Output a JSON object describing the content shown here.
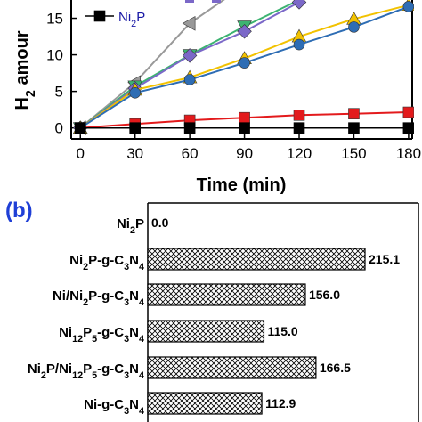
{
  "chart_data": [
    {
      "type": "line",
      "panel": "",
      "xlabel": "Time (min)",
      "ylabel": "H2 amount",
      "xlim": [
        -5,
        182
      ],
      "ylim": [
        -1.5,
        17.5
      ],
      "xticks": [
        0,
        30,
        60,
        90,
        120,
        150,
        180
      ],
      "yticks": [
        0,
        5,
        10,
        15
      ],
      "legend_position": "top-left",
      "series": [
        {
          "name": "",
          "color": "#999999",
          "marker": "triangle-left",
          "x": [
            0,
            30,
            60,
            90
          ],
          "y": [
            0,
            6.2,
            14.3,
            19.5
          ]
        },
        {
          "name": "",
          "color": "#3cb371",
          "marker": "triangle-down",
          "x": [
            0,
            30,
            60,
            90,
            120
          ],
          "y": [
            0,
            5.7,
            10.0,
            13.9,
            17.5
          ]
        },
        {
          "name": "",
          "color": "#7b68c8",
          "marker": "diamond",
          "x": [
            0,
            30,
            60,
            90,
            120
          ],
          "y": [
            0,
            5.4,
            9.9,
            13.2,
            17.2
          ]
        },
        {
          "name": "",
          "color": "#f2c200",
          "marker": "triangle-up",
          "x": [
            0,
            30,
            60,
            90,
            120,
            150,
            180
          ],
          "y": [
            0,
            5.2,
            6.9,
            9.5,
            12.5,
            14.9,
            16.8
          ]
        },
        {
          "name": "",
          "color": "#2e6db4",
          "marker": "circle",
          "x": [
            0,
            30,
            60,
            90,
            120,
            150,
            180
          ],
          "y": [
            0,
            4.8,
            6.6,
            8.9,
            11.4,
            13.8,
            16.6
          ]
        },
        {
          "name": "",
          "color": "#e31a1c",
          "marker": "square",
          "x": [
            0,
            30,
            60,
            90,
            120,
            150,
            180
          ],
          "y": [
            0,
            0.55,
            1.05,
            1.4,
            1.75,
            1.95,
            2.15
          ]
        },
        {
          "name": "Ni2P",
          "color": "#000000",
          "marker": "square",
          "x": [
            0,
            30,
            60,
            90,
            120,
            150,
            180
          ],
          "y": [
            0,
            0,
            0,
            0,
            0,
            0,
            0
          ]
        }
      ],
      "legend": [
        {
          "series": "Ni2P",
          "text": "Ni",
          "sub": "2",
          "after": "P"
        }
      ]
    },
    {
      "type": "bar",
      "orientation": "horizontal",
      "panel": "(b)",
      "xlim": [
        0,
        250
      ],
      "categories": [
        {
          "parts": [
            [
              "Ni",
              ""
            ],
            [
              "2",
              "sub"
            ],
            [
              "P",
              ""
            ]
          ]
        },
        {
          "parts": [
            [
              "Ni",
              ""
            ],
            [
              "2",
              "sub"
            ],
            [
              "P-g-C",
              ""
            ],
            [
              "3",
              "sub"
            ],
            [
              "N",
              ""
            ],
            [
              "4",
              "sub"
            ]
          ]
        },
        {
          "parts": [
            [
              "Ni/Ni",
              ""
            ],
            [
              "2",
              "sub"
            ],
            [
              "P-g-C",
              ""
            ],
            [
              "3",
              "sub"
            ],
            [
              "N",
              ""
            ],
            [
              "4",
              "sub"
            ]
          ]
        },
        {
          "parts": [
            [
              "Ni",
              ""
            ],
            [
              "12",
              "sub"
            ],
            [
              "P",
              ""
            ],
            [
              "5",
              "sub"
            ],
            [
              "-g-C",
              ""
            ],
            [
              "3",
              "sub"
            ],
            [
              "N",
              ""
            ],
            [
              "4",
              "sub"
            ]
          ]
        },
        {
          "parts": [
            [
              "Ni",
              ""
            ],
            [
              "2",
              "sub"
            ],
            [
              "P/Ni",
              ""
            ],
            [
              "12",
              "sub"
            ],
            [
              "P",
              ""
            ],
            [
              "5",
              "sub"
            ],
            [
              "-g-C",
              ""
            ],
            [
              "3",
              "sub"
            ],
            [
              "N",
              ""
            ],
            [
              "4",
              "sub"
            ]
          ]
        },
        {
          "parts": [
            [
              "Ni-g-C",
              ""
            ],
            [
              "3",
              "sub"
            ],
            [
              "N",
              ""
            ],
            [
              "4",
              "sub"
            ]
          ]
        }
      ],
      "values": [
        0.0,
        215.1,
        156.0,
        115.0,
        166.5,
        112.9
      ],
      "value_labels": [
        "0.0",
        "215.1",
        "156.0",
        "115.0",
        "166.5",
        "112.9"
      ],
      "pattern": "crosshatch"
    }
  ],
  "panel_a": {
    "ylabel_parts": [
      [
        "H",
        ""
      ],
      [
        "2",
        "sub"
      ],
      [
        " amour",
        ""
      ]
    ]
  }
}
